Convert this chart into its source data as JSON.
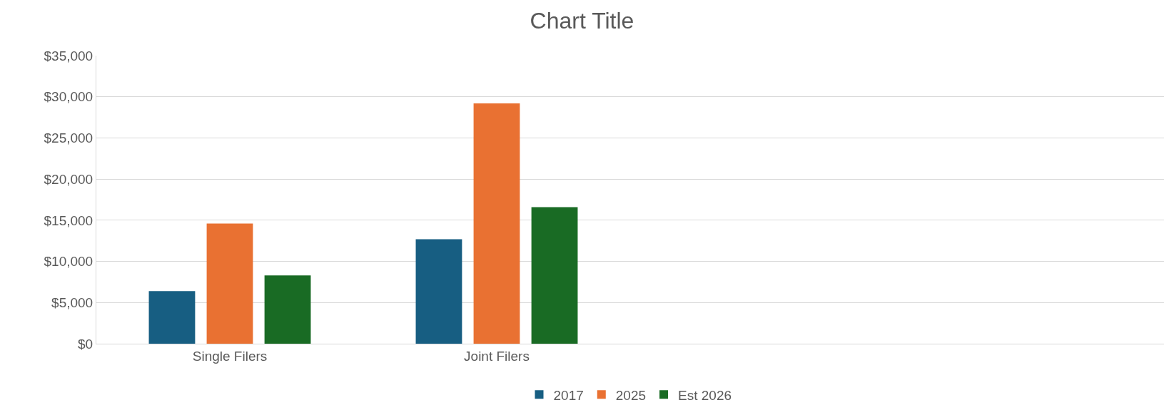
{
  "chart_data": {
    "type": "bar",
    "title": "Chart Title",
    "categories": [
      "Single Filers",
      "Joint Filers",
      null,
      null
    ],
    "series": [
      {
        "name": "2017",
        "color": "#175e82",
        "values": [
          6400,
          12700,
          null,
          null
        ]
      },
      {
        "name": "2025",
        "color": "#e97132",
        "values": [
          14600,
          29200,
          null,
          null
        ]
      },
      {
        "name": "Est 2026",
        "color": "#196b24",
        "values": [
          8300,
          16600,
          null,
          null
        ]
      }
    ],
    "ylim": [
      0,
      35000
    ],
    "yticks": [
      {
        "value": 0,
        "label": "$0"
      },
      {
        "value": 5000,
        "label": "$5,000"
      },
      {
        "value": 10000,
        "label": "$10,000"
      },
      {
        "value": 15000,
        "label": "$15,000"
      },
      {
        "value": 20000,
        "label": "$20,000"
      },
      {
        "value": 25000,
        "label": "$25,000"
      },
      {
        "value": 30000,
        "label": "$30,000"
      },
      {
        "value": 35000,
        "label": "$35,000"
      }
    ],
    "grid": "y",
    "legend": "bottom"
  }
}
